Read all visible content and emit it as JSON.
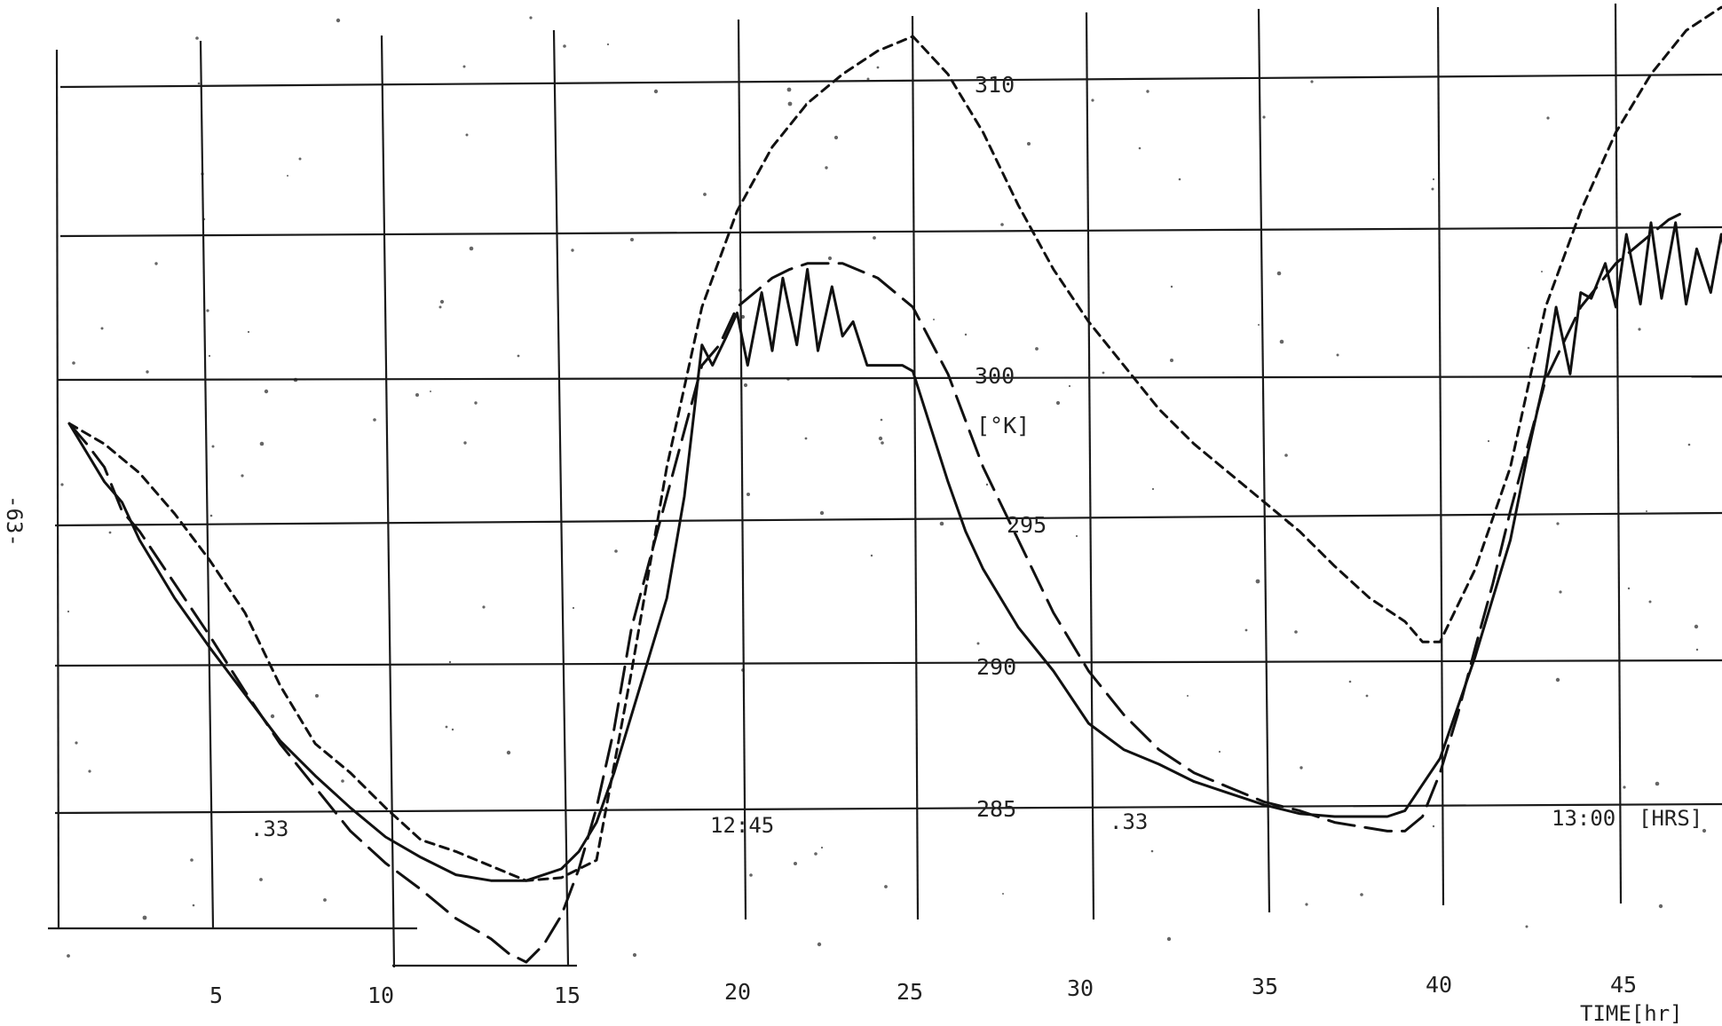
{
  "page_number": "-63-",
  "chart_data": {
    "type": "line",
    "xlabel": "TIME[hr]",
    "ylabel": "[°K]",
    "xlim": [
      0,
      48
    ],
    "ylim": [
      280,
      312
    ],
    "x_ticks": [
      "5",
      "10",
      "15",
      "20",
      "25",
      "30",
      "35",
      "40",
      "45"
    ],
    "y_ticks": [
      "285",
      "290",
      "295",
      "300",
      "310"
    ],
    "annotations": [
      ".33",
      "12:45",
      ".33",
      "13:00",
      "[HRS]"
    ],
    "grid": true,
    "series": [
      {
        "style": "solid",
        "x": [
          0,
          0.5,
          1,
          1.5,
          2,
          3,
          4,
          5,
          6,
          7,
          8,
          9,
          10,
          11,
          12,
          13,
          14,
          14.5,
          15,
          15.5,
          16,
          17,
          17.5,
          18,
          18.3,
          18.7,
          19,
          19.3,
          19.7,
          20,
          20.3,
          20.7,
          21,
          21.3,
          21.7,
          22,
          22.3,
          22.7,
          23,
          23.3,
          23.7,
          24,
          25,
          25.5,
          26,
          27,
          28,
          29,
          30,
          31,
          32,
          33,
          34,
          35,
          36,
          37,
          37.5,
          38,
          39,
          40,
          41,
          41.5,
          42,
          42.3,
          42.7,
          43,
          43.3,
          43.7,
          44,
          44.3,
          44.7,
          45,
          45.3,
          45.7,
          46,
          46.3,
          46.7,
          47,
          47.5,
          48
        ],
        "y": [
          298.5,
          297.5,
          296.5,
          295.8,
          294.5,
          292.5,
          290.8,
          289.2,
          287.6,
          286.4,
          285.3,
          284.3,
          283.6,
          283.0,
          282.8,
          282.8,
          283.2,
          283.8,
          284.8,
          286.5,
          288.5,
          292.5,
          296,
          301.2,
          300.5,
          301.5,
          302.3,
          300.5,
          303.0,
          301.0,
          303.5,
          301.2,
          303.8,
          301.0,
          303.2,
          301.5,
          302.0,
          300.5,
          300.5,
          300.5,
          300.5,
          300.3,
          296.5,
          294.8,
          293.5,
          291.5,
          290.0,
          288.2,
          287.3,
          286.8,
          286.2,
          285.8,
          285.4,
          285.1,
          285.0,
          285.0,
          285.0,
          285.2,
          287.0,
          290.5,
          294.5,
          297.5,
          300.2,
          302.5,
          300.2,
          303.0,
          302.8,
          304.0,
          302.5,
          305.0,
          302.6,
          305.4,
          302.8,
          305.4,
          302.6,
          304.5,
          303.0,
          305.0,
          301.8,
          300.8
        ]
      },
      {
        "style": "long-dash",
        "x": [
          0,
          0.5,
          1,
          1.5,
          2,
          3,
          4,
          5,
          6,
          7,
          8,
          9,
          10,
          11,
          12,
          12.5,
          13,
          13.5,
          14,
          14.5,
          15,
          15.5,
          16,
          17,
          18,
          18.5,
          19,
          19.5,
          20,
          20.5,
          21,
          22,
          23,
          24,
          25,
          26,
          27,
          28,
          29,
          30,
          31,
          32,
          33,
          34,
          35,
          36,
          37,
          37.5,
          38,
          38.5,
          39,
          39.5,
          40,
          40.5,
          41,
          42,
          43,
          44,
          45,
          45.5,
          46
        ],
        "y": [
          298.5,
          297.8,
          297.0,
          295.5,
          294.8,
          293.0,
          291.2,
          289.3,
          287.5,
          286.0,
          284.5,
          283.4,
          282.5,
          281.5,
          280.8,
          280.3,
          280.0,
          280.6,
          281.6,
          283.2,
          285.3,
          288.0,
          291.5,
          296.0,
          300.5,
          301.2,
          302.5,
          303.0,
          303.5,
          303.8,
          304.0,
          304.0,
          303.5,
          302.5,
          300.2,
          297.0,
          294.5,
          292.0,
          290.0,
          288.5,
          287.3,
          286.5,
          286.0,
          285.5,
          285.2,
          284.8,
          284.6,
          284.5,
          284.5,
          285.0,
          286.5,
          288.5,
          290.8,
          293.0,
          295.5,
          300.0,
          302.5,
          304.0,
          305.0,
          305.5,
          305.8
        ]
      },
      {
        "style": "short-dash",
        "x": [
          0,
          1,
          2,
          3,
          4,
          5,
          6,
          7,
          8,
          9,
          10,
          11,
          12,
          13,
          14,
          14.5,
          15,
          16,
          17,
          18,
          19,
          20,
          21,
          22,
          23,
          24,
          25,
          26,
          27,
          28,
          29,
          30,
          31,
          32,
          33,
          34,
          35,
          36,
          37,
          38,
          38.5,
          39,
          40,
          41,
          42,
          43,
          44,
          45,
          46,
          47,
          48
        ],
        "y": [
          298.5,
          297.8,
          296.8,
          295.4,
          293.8,
          292.0,
          289.5,
          287.5,
          286.5,
          285.3,
          284.2,
          283.8,
          283.3,
          282.8,
          282.9,
          283.2,
          283.5,
          290.0,
          297.0,
          302.5,
          305.8,
          308.0,
          309.5,
          310.5,
          311.3,
          311.8,
          310.5,
          308.5,
          306.0,
          303.8,
          302.0,
          300.5,
          299.0,
          297.8,
          296.8,
          295.8,
          294.8,
          293.6,
          292.5,
          291.7,
          291.0,
          291.0,
          293.5,
          297.0,
          302.5,
          305.8,
          308.5,
          310.5,
          312.0,
          312.8,
          312.2
        ]
      }
    ]
  }
}
